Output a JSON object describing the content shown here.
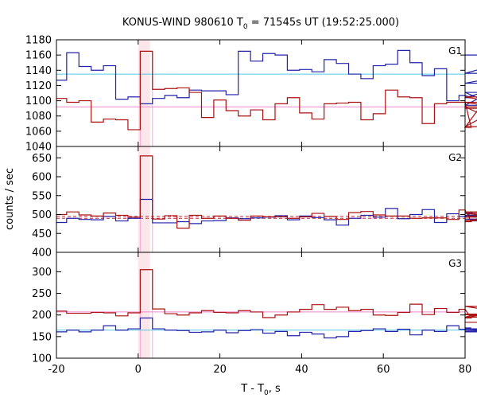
{
  "chart_data": {
    "type": "line",
    "style": "step-histogram",
    "title": {
      "main": "KONUS-WIND 980610 T",
      "sub": "0",
      "rest": " = 71545s UT (19:52:25.000)"
    },
    "xlabel": {
      "main": "T - T",
      "sub": "0",
      "rest": ", s"
    },
    "ylabel": "counts / sec",
    "xlim": [
      -20,
      80
    ],
    "x_ticks": [
      -20,
      0,
      20,
      40,
      60,
      80
    ],
    "x_tick_labels": [
      "-20",
      "0",
      "20",
      "40",
      "60",
      "80"
    ],
    "grid": false,
    "legend": "none",
    "bin_width": 3.0,
    "bin_edges_start": -20.5,
    "highlight_interval": [
      0,
      2.9
    ],
    "colors": {
      "blue": "#2222aa",
      "red": "#aa1111",
      "cyan": "#55c6e8",
      "pink": "#ee88cc",
      "highlight": "#fde6ea",
      "spike": "#f7a8cf",
      "dashed": "#cc2233"
    },
    "panels": [
      {
        "name": "G1",
        "ylim": [
          1040,
          1180
        ],
        "y_ticks": [
          1040,
          1060,
          1080,
          1100,
          1120,
          1140,
          1160,
          1180
        ],
        "y_tick_labels": [
          "1040",
          "1060",
          "1080",
          "1100",
          "1120",
          "1140",
          "1160",
          "1180"
        ],
        "series": [
          {
            "values": [
              1127,
              1163,
              1145,
              1140,
              1146,
              1102,
              1105,
              1096,
              1103,
              1107,
              1104,
              1114,
              1113,
              1113,
              1108,
              1165,
              1152,
              1162,
              1160,
              1140,
              1141,
              1138,
              1154,
              1149,
              1135,
              1129,
              1146,
              1148,
              1166,
              1150,
              1133,
              1142,
              1100,
              1107,
              1104,
              1111,
              1094,
              1123,
              1136,
              1160
            ]
          },
          {
            "values": [
              1103,
              1098,
              1100,
              1072,
              1076,
              1075,
              1062,
              1165,
              1115,
              1116,
              1117,
              1111,
              1078,
              1101,
              1087,
              1080,
              1088,
              1075,
              1096,
              1104,
              1084,
              1076,
              1096,
              1097,
              1098,
              1075,
              1083,
              1114,
              1105,
              1104,
              1070,
              1096,
              1098,
              1098,
              1065,
              1098,
              1092,
              1066,
              1105,
              1090
            ]
          }
        ],
        "reference_lines": [
          1135,
          1092
        ]
      },
      {
        "name": "G2",
        "ylim": [
          400,
          680
        ],
        "y_ticks": [
          400,
          450,
          500,
          550,
          600,
          650
        ],
        "y_tick_labels": [
          "400",
          "450",
          "500",
          "550",
          "600",
          "650"
        ],
        "series": [
          {
            "values": [
              479,
              490,
              487,
              486,
              495,
              483,
              490,
              540,
              478,
              478,
              481,
              476,
              483,
              484,
              491,
              489,
              491,
              493,
              497,
              486,
              496,
              492,
              486,
              472,
              490,
              498,
              493,
              516,
              489,
              500,
              513,
              479,
              502,
              495,
              504,
              498,
              488,
              483,
              494,
              497
            ]
          },
          {
            "values": [
              500,
              507,
              499,
              496,
              504,
              498,
              493,
              655,
              488,
              497,
              464,
              498,
              490,
              496,
              490,
              485,
              496,
              494,
              494,
              490,
              494,
              503,
              495,
              487,
              505,
              508,
              499,
              496,
              496,
              490,
              491,
              491,
              487,
              512,
              481,
              493,
              493,
              507,
              503,
              484
            ]
          }
        ],
        "reference_lines": [
          495,
          490
        ]
      },
      {
        "name": "G3",
        "ylim": [
          100,
          345
        ],
        "y_ticks": [
          100,
          150,
          200,
          250,
          300
        ],
        "y_tick_labels": [
          "100",
          "150",
          "200",
          "250",
          "300"
        ],
        "series": [
          {
            "values": [
              161,
              165,
              161,
              165,
              175,
              165,
              168,
              193,
              168,
              165,
              164,
              160,
              161,
              165,
              159,
              164,
              166,
              158,
              162,
              152,
              160,
              156,
              147,
              150,
              162,
              164,
              168,
              162,
              167,
              154,
              165,
              162,
              175,
              167,
              170,
              165,
              168,
              165,
              161,
              162
            ]
          },
          {
            "values": [
              209,
              204,
              204,
              206,
              205,
              198,
              205,
              305,
              214,
              203,
              200,
              205,
              210,
              206,
              205,
              210,
              207,
              194,
              200,
              207,
              213,
              224,
              213,
              218,
              210,
              213,
              200,
              199,
              206,
              225,
              201,
              215,
              206,
              213,
              193,
              202,
              195,
              220,
              201,
              183
            ]
          }
        ],
        "reference_lines": [
          207,
          165
        ]
      }
    ]
  }
}
